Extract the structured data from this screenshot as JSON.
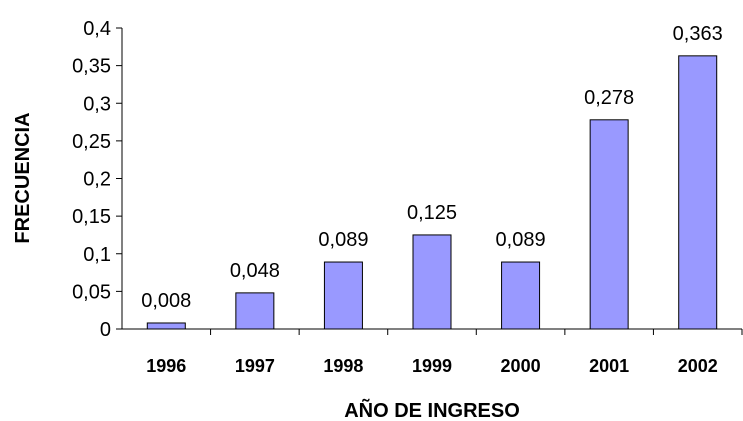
{
  "chart_data": {
    "type": "bar",
    "categories": [
      "1996",
      "1997",
      "1998",
      "1999",
      "2000",
      "2001",
      "2002"
    ],
    "values": [
      0.008,
      0.048,
      0.089,
      0.125,
      0.089,
      0.278,
      0.363
    ],
    "value_labels": [
      "0,008",
      "0,048",
      "0,089",
      "0,125",
      "0,089",
      "0,278",
      "0,363"
    ],
    "y_ticks": [
      0,
      0.05,
      0.1,
      0.15,
      0.2,
      0.25,
      0.3,
      0.35,
      0.4
    ],
    "y_tick_labels": [
      "0",
      "0,05",
      "0,1",
      "0,15",
      "0,2",
      "0,25",
      "0,3",
      "0,35",
      "0,4"
    ],
    "ylim": [
      0,
      0.4
    ],
    "xlabel": "AÑO DE INGRESO",
    "ylabel": "FRECUENCIA",
    "bar_color": "#9999ff",
    "grid": false,
    "legend": "none"
  }
}
